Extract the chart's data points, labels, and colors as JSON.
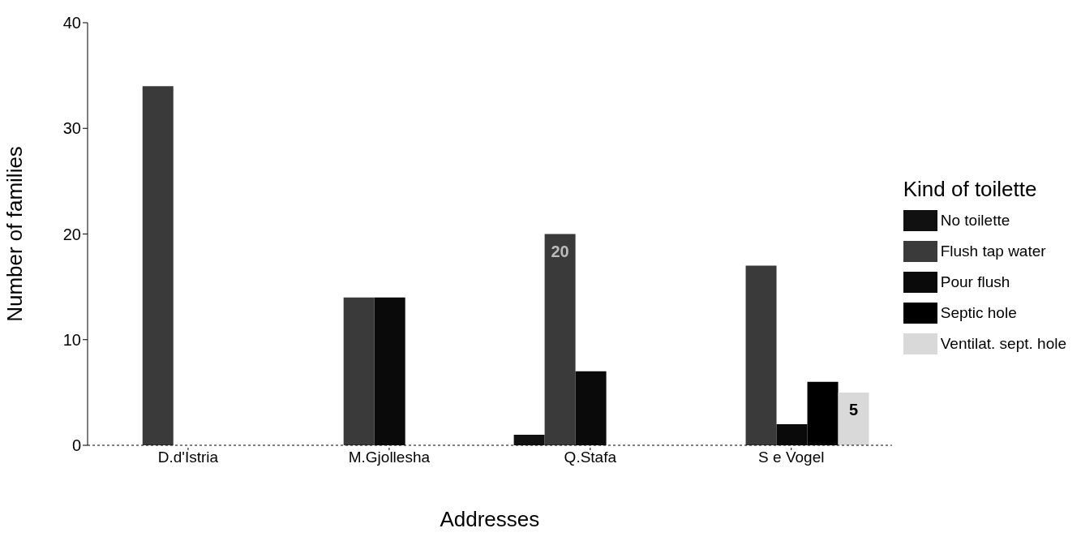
{
  "chart_data": {
    "type": "bar",
    "xlabel": "Addresses",
    "ylabel": "Number of families",
    "legend_title": "Kind of toilette",
    "legend": "right",
    "grid": false,
    "categories": [
      "D.d'Istria",
      "M.Gjollesha",
      "Q.Stafa",
      "S e Vogel"
    ],
    "ylim": [
      0,
      40
    ],
    "yticks": [
      0,
      10,
      20,
      30,
      40
    ],
    "series": [
      {
        "name": "No toilette",
        "color": "#111111",
        "values": [
          null,
          null,
          1,
          null
        ]
      },
      {
        "name": "Flush tap water",
        "color": "#3a3a3a",
        "values": [
          34,
          14,
          20,
          17
        ],
        "value_labels": [
          null,
          null,
          "20",
          null
        ]
      },
      {
        "name": "Pour flush",
        "color": "#0a0a0a",
        "values": [
          null,
          14,
          7,
          2
        ]
      },
      {
        "name": "Septic hole",
        "color": "#000000",
        "values": [
          null,
          null,
          null,
          6
        ]
      },
      {
        "name": "Ventilat. sept. hole",
        "color": "#d9d9d9",
        "values": [
          null,
          null,
          null,
          5
        ],
        "value_labels": [
          null,
          null,
          null,
          "5"
        ]
      }
    ]
  }
}
